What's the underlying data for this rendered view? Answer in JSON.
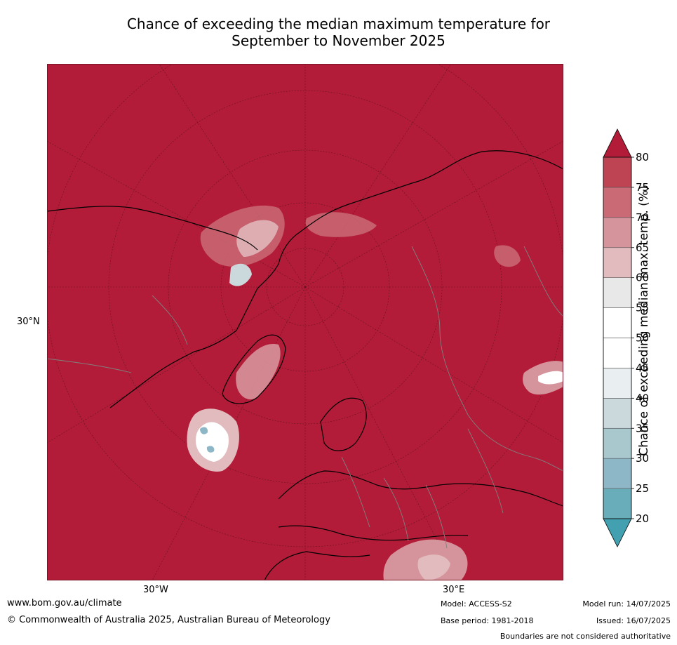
{
  "title": {
    "line1": "Chance of exceeding the median maximum temperature for",
    "line2": "September to November 2025"
  },
  "map": {
    "background_color": "#B21C38",
    "coastline_color": "#000000",
    "border_color": "#808080",
    "labels": {
      "lat_30n": "30°N",
      "lon_30w": "30°W",
      "lon_30e": "30°E"
    }
  },
  "colorbar": {
    "label": "Chance of exceeding median max. temp. (%)",
    "ticks": [
      "20",
      "25",
      "30",
      "35",
      "40",
      "45",
      "50",
      "55",
      "60",
      "65",
      "70",
      "75",
      "80"
    ],
    "colors": [
      "#6AADBA",
      "#8DB7C6",
      "#A8C8CE",
      "#CBD9DC",
      "#E9EEF1",
      "#FFFFFF",
      "#FFFFFF",
      "#E8E8E8",
      "#E1BBBE",
      "#D5949B",
      "#C96A74",
      "#BE4453"
    ],
    "under_color": "#43A0B0",
    "over_color": "#B21C38"
  },
  "footer": {
    "website": "www.bom.gov.au/climate",
    "copyright": "© Commonwealth of Australia 2025, Australian Bureau of Meteorology",
    "model": "Model: ACCESS-S2",
    "base_period": "Base period: 1981-2018",
    "model_run": "Model run: 14/07/2025",
    "issued": "Issued: 16/07/2025",
    "disclaimer": "Boundaries are not considered authoritative"
  }
}
